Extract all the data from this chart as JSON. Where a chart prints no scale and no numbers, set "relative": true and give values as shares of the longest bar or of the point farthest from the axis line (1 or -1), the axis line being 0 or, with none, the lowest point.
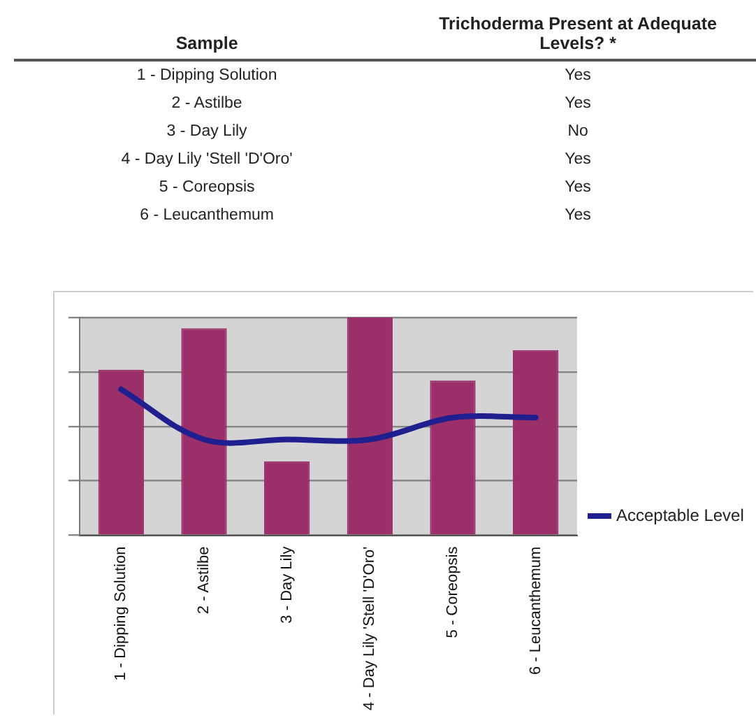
{
  "chart_data": [
    {
      "type": "other",
      "xlabel": "Sample",
      "ylabel": "Trichoderma Present at Adequate Levels? *",
      "categories": [
        "1 - Dipping Solution",
        "2 - Astilbe",
        "3 - Day Lily",
        "4 - Day Lily 'Stell 'D'Oro'",
        "5 - Coreopsis",
        "6 - Leucanthemum"
      ],
      "value_labels": [
        "Yes",
        "Yes",
        "No",
        "Yes",
        "Yes",
        "Yes"
      ]
    },
    {
      "type": "bar",
      "relative": true,
      "categories": [
        "1 - Dipping Solution",
        "2 - Astilbe",
        "3 - Day Lily",
        "4 - Day Lily 'Stell 'D'Oro'",
        "5 - Coreopsis",
        "6 - Leucanthemum"
      ],
      "series": [
        {
          "color": "#9b2f6a",
          "values": [
            0.76,
            0.95,
            0.34,
            1.0,
            0.71,
            0.85
          ]
        },
        {
          "type": "line",
          "name": "Acceptable Level",
          "color": "#1f1f8f",
          "values": [
            0.67,
            0.44,
            0.44,
            0.44,
            0.54,
            0.54
          ]
        }
      ],
      "grid": "y",
      "legend": "right"
    }
  ]
}
